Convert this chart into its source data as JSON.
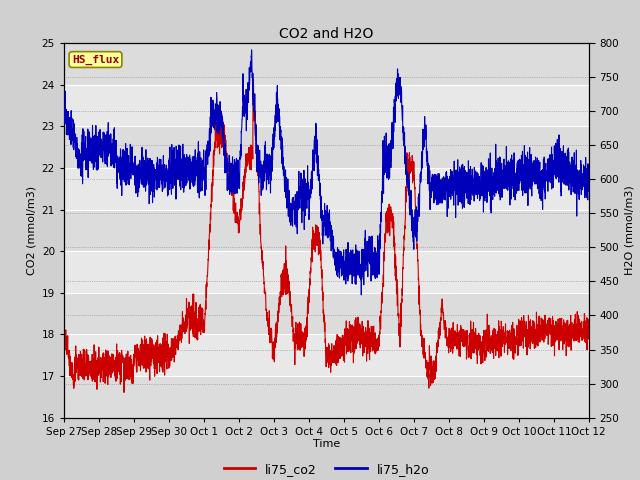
{
  "title": "CO2 and H2O",
  "xlabel": "Time",
  "ylabel_left": "CO2 (mmol/m3)",
  "ylabel_right": "H2O (mmol/m3)",
  "ylim_left": [
    16.0,
    25.0
  ],
  "ylim_right": [
    250,
    800
  ],
  "yticks_left": [
    16.0,
    17.0,
    18.0,
    19.0,
    20.0,
    21.0,
    22.0,
    23.0,
    24.0,
    25.0
  ],
  "yticks_right": [
    250,
    300,
    350,
    400,
    450,
    500,
    550,
    600,
    650,
    700,
    750,
    800
  ],
  "co2_color": "#CC0000",
  "h2o_color": "#0000BB",
  "fig_facecolor": "#D0D0D0",
  "ax_facecolor": "#E8E8E8",
  "grid_color": "#FFFFFF",
  "label_box_text": "HS_flux",
  "label_box_facecolor": "#FFFF99",
  "label_box_edgecolor": "#888800",
  "label_box_textcolor": "#990000",
  "legend_co2": "li75_co2",
  "legend_h2o": "li75_h2o",
  "linewidth": 0.8,
  "x_tick_labels": [
    "Sep 27",
    "Sep 28",
    "Sep 29",
    "Sep 30",
    "Oct 1",
    "Oct 2",
    "Oct 3",
    "Oct 4",
    "Oct 5",
    "Oct 6",
    "Oct 7",
    "Oct 8",
    "Oct 9",
    "Oct 10",
    "Oct 11",
    "Oct 12"
  ],
  "x_tick_positions": [
    0,
    1,
    2,
    3,
    4,
    5,
    6,
    7,
    8,
    9,
    10,
    11,
    12,
    13,
    14,
    15
  ]
}
